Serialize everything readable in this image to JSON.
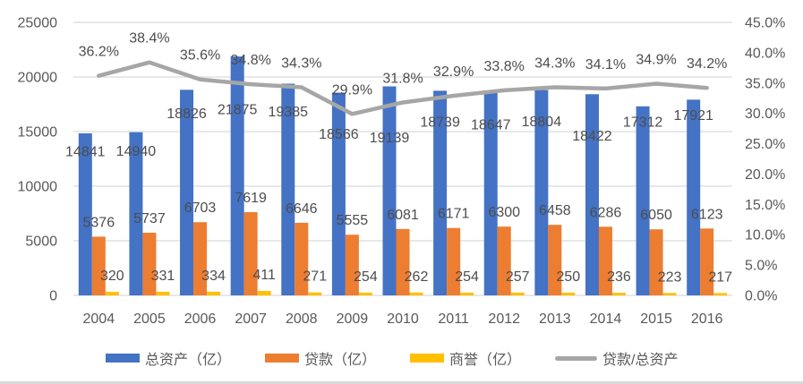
{
  "chart_data": {
    "type": "bar",
    "subtype": "combo-bar-line",
    "title": "",
    "categories": [
      "2004",
      "2005",
      "2006",
      "2007",
      "2008",
      "2009",
      "2010",
      "2011",
      "2012",
      "2013",
      "2014",
      "2015",
      "2016"
    ],
    "series": [
      {
        "name": "总资产（亿）",
        "type": "bar",
        "axis": "left",
        "color": "#4472C4",
        "values": [
          14841,
          14940,
          18826,
          21875,
          19385,
          18566,
          19139,
          18739,
          18647,
          18804,
          18422,
          17312,
          17921
        ]
      },
      {
        "name": "贷款（亿）",
        "type": "bar",
        "axis": "left",
        "color": "#ED7D31",
        "values": [
          5376,
          5737,
          6703,
          7619,
          6646,
          5555,
          6081,
          6171,
          6300,
          6458,
          6286,
          6050,
          6123
        ]
      },
      {
        "name": "商誉（亿）",
        "type": "bar",
        "axis": "left",
        "color": "#FFC000",
        "values": [
          320,
          331,
          334,
          411,
          271,
          254,
          262,
          254,
          257,
          250,
          236,
          223,
          217
        ]
      },
      {
        "name": "贷款/总资产",
        "type": "line",
        "axis": "right",
        "color": "#A6A6A6",
        "values": [
          36.2,
          38.4,
          35.6,
          34.8,
          34.3,
          29.9,
          31.8,
          32.9,
          33.8,
          34.3,
          34.1,
          34.9,
          34.2
        ],
        "value_labels": [
          "36.2%",
          "38.4%",
          "35.6%",
          "34.8%",
          "34.3%",
          "29.9%",
          "31.8%",
          "32.9%",
          "33.8%",
          "34.3%",
          "34.1%",
          "34.9%",
          "34.2%"
        ]
      }
    ],
    "left_axis": {
      "min": 0,
      "max": 25000,
      "step": 5000,
      "tick_labels": [
        "25000",
        "20000",
        "15000",
        "10000",
        "5000",
        "0"
      ]
    },
    "right_axis": {
      "min": 0,
      "max": 45,
      "step": 5,
      "tick_labels": [
        "45.0%",
        "40.0%",
        "35.0%",
        "30.0%",
        "25.0%",
        "20.0%",
        "15.0%",
        "10.0%",
        "5.0%",
        "0.0%"
      ]
    },
    "grid": true,
    "legend_position": "bottom",
    "colors": {
      "gridline": "#D9D9D9",
      "axis_text": "#595959",
      "label_text": "#4d4d4d",
      "background": "#FFFFFF",
      "bottom_border": "#D9D9D9"
    }
  }
}
